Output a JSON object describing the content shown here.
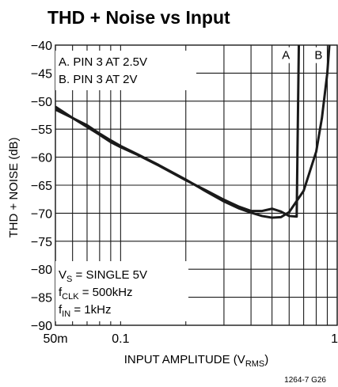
{
  "chart_data": {
    "type": "line",
    "title": "THD + Noise vs Input",
    "xlabel": {
      "main": "INPUT AMPLITUDE (V",
      "sub": "RMS",
      "end": ")"
    },
    "ylabel": "THD + NOISE (dB)",
    "x_scale": "log",
    "xlim": [
      0.05,
      1
    ],
    "ylim": [
      -90,
      -40
    ],
    "x_ticks": [
      {
        "value": 0.05,
        "label": "50m"
      },
      {
        "value": 0.1,
        "label": "0.1"
      },
      {
        "value": 1,
        "label": "1"
      }
    ],
    "x_grid": [
      0.05,
      0.06,
      0.07,
      0.08,
      0.09,
      0.1,
      0.2,
      0.3,
      0.4,
      0.5,
      0.6,
      0.7,
      0.8,
      0.9,
      1
    ],
    "y_ticks": [
      {
        "value": -40,
        "label": "−40"
      },
      {
        "value": -45,
        "label": "−45"
      },
      {
        "value": -50,
        "label": "−50"
      },
      {
        "value": -55,
        "label": "−55"
      },
      {
        "value": -60,
        "label": "−60"
      },
      {
        "value": -65,
        "label": "−65"
      },
      {
        "value": -70,
        "label": "−70"
      },
      {
        "value": -75,
        "label": "−75"
      },
      {
        "value": -80,
        "label": "−80"
      },
      {
        "value": -85,
        "label": "−85"
      },
      {
        "value": -90,
        "label": "−90"
      }
    ],
    "grid": true,
    "series": [
      {
        "name": "A",
        "points": [
          [
            0.05,
            -51.0
          ],
          [
            0.06,
            -53.0
          ],
          [
            0.07,
            -54.6
          ],
          [
            0.08,
            -56.0
          ],
          [
            0.09,
            -57.3
          ],
          [
            0.1,
            -58.2
          ],
          [
            0.12,
            -59.6
          ],
          [
            0.15,
            -61.5
          ],
          [
            0.2,
            -64.1
          ],
          [
            0.25,
            -66.0
          ],
          [
            0.3,
            -67.6
          ],
          [
            0.35,
            -68.8
          ],
          [
            0.4,
            -69.6
          ],
          [
            0.45,
            -69.6
          ],
          [
            0.5,
            -69.2
          ],
          [
            0.55,
            -69.7
          ],
          [
            0.6,
            -70.5
          ],
          [
            0.65,
            -70.6
          ],
          [
            0.655,
            -60.0
          ],
          [
            0.66,
            -50.0
          ],
          [
            0.665,
            -40.0
          ]
        ]
      },
      {
        "name": "B",
        "points": [
          [
            0.05,
            -51.5
          ],
          [
            0.06,
            -53.0
          ],
          [
            0.07,
            -54.3
          ],
          [
            0.08,
            -55.8
          ],
          [
            0.09,
            -57.0
          ],
          [
            0.1,
            -58.0
          ],
          [
            0.12,
            -59.5
          ],
          [
            0.15,
            -61.4
          ],
          [
            0.2,
            -64.0
          ],
          [
            0.25,
            -66.2
          ],
          [
            0.3,
            -67.9
          ],
          [
            0.35,
            -69.1
          ],
          [
            0.4,
            -69.9
          ],
          [
            0.45,
            -70.5
          ],
          [
            0.5,
            -70.8
          ],
          [
            0.55,
            -70.7
          ],
          [
            0.6,
            -69.8
          ],
          [
            0.7,
            -66.0
          ],
          [
            0.8,
            -59.0
          ],
          [
            0.85,
            -53.0
          ],
          [
            0.9,
            -45.0
          ],
          [
            0.92,
            -40.0
          ]
        ]
      }
    ],
    "curve_labels": [
      {
        "text": "A",
        "x": 0.58,
        "y": -42.5
      },
      {
        "text": "B",
        "x": 0.82,
        "y": -42.5
      }
    ],
    "legend": {
      "lines": [
        "A. PIN 3 AT 2.5V",
        "B. PIN 3 AT 2V"
      ]
    },
    "conditions": [
      {
        "main": "V",
        "sub": "S",
        "rest": " = SINGLE 5V"
      },
      {
        "main": "f",
        "sub": "CLK",
        "rest": " = 500kHz"
      },
      {
        "main": "f",
        "sub": "IN",
        "rest": " = 1kHz"
      }
    ],
    "figure_code": "1264-7 G26",
    "colors": {
      "line": "#1a1a1a",
      "grid": "#1a1a1a",
      "background": "#ffffff"
    }
  }
}
